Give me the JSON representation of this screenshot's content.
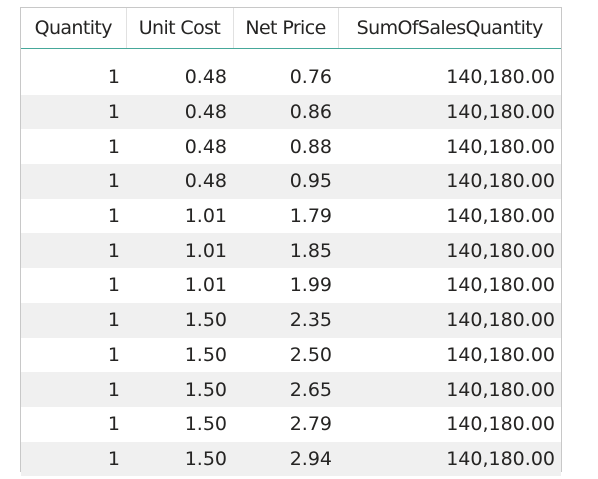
{
  "table": {
    "columns": [
      "Quantity",
      "Unit Cost",
      "Net Price",
      "SumOfSalesQuantity"
    ],
    "rows": [
      [
        "1",
        "0.48",
        "0.76",
        "140,180.00"
      ],
      [
        "1",
        "0.48",
        "0.86",
        "140,180.00"
      ],
      [
        "1",
        "0.48",
        "0.88",
        "140,180.00"
      ],
      [
        "1",
        "0.48",
        "0.95",
        "140,180.00"
      ],
      [
        "1",
        "1.01",
        "1.79",
        "140,180.00"
      ],
      [
        "1",
        "1.01",
        "1.85",
        "140,180.00"
      ],
      [
        "1",
        "1.01",
        "1.99",
        "140,180.00"
      ],
      [
        "1",
        "1.50",
        "2.35",
        "140,180.00"
      ],
      [
        "1",
        "1.50",
        "2.50",
        "140,180.00"
      ],
      [
        "1",
        "1.50",
        "2.65",
        "140,180.00"
      ],
      [
        "1",
        "1.50",
        "2.79",
        "140,180.00"
      ],
      [
        "1",
        "1.50",
        "2.94",
        "140,180.00"
      ]
    ]
  },
  "colors": {
    "header_underline": "#46a89a",
    "row_band": "#f0f0f0",
    "text": "#252423"
  }
}
